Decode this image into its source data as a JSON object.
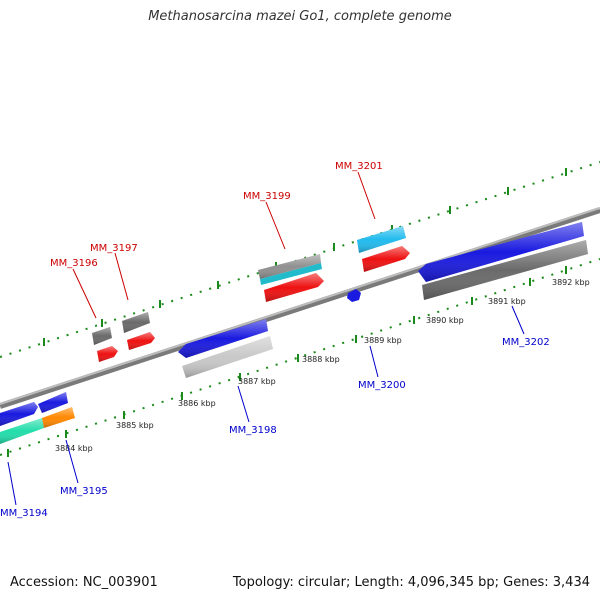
{
  "title": "Methanosarcina mazei Go1, complete genome",
  "footer": {
    "accession": "Accession: NC_003901",
    "topology": "Topology: circular; Length: 4,096,345 bp; Genes: 3,434"
  },
  "scale_labels": [
    "3884 kbp",
    "3885 kbp",
    "3886 kbp",
    "3887 kbp",
    "3888 kbp",
    "3889 kbp",
    "3890 kbp",
    "3891 kbp",
    "3892 kbp"
  ],
  "genes": {
    "forward": [
      "MM_3196",
      "MM_3197",
      "MM_3199",
      "MM_3201"
    ],
    "reverse": [
      "MM_3194",
      "MM_3195",
      "MM_3198",
      "MM_3200",
      "MM_3202"
    ]
  },
  "colors": {
    "forward_label": "#cc0000",
    "reverse_label": "#0000cc",
    "backbone": "#888888",
    "tick": "#1a8a1a",
    "cds_blue": "#1a1ae0",
    "cds_red": "#ee1111",
    "cds_gray": "#6a6a6a",
    "cds_light": "#c8c8c8",
    "cds_cyan": "#22bbee",
    "cds_teal": "#22ddaa",
    "cds_orange": "#ff8800"
  }
}
